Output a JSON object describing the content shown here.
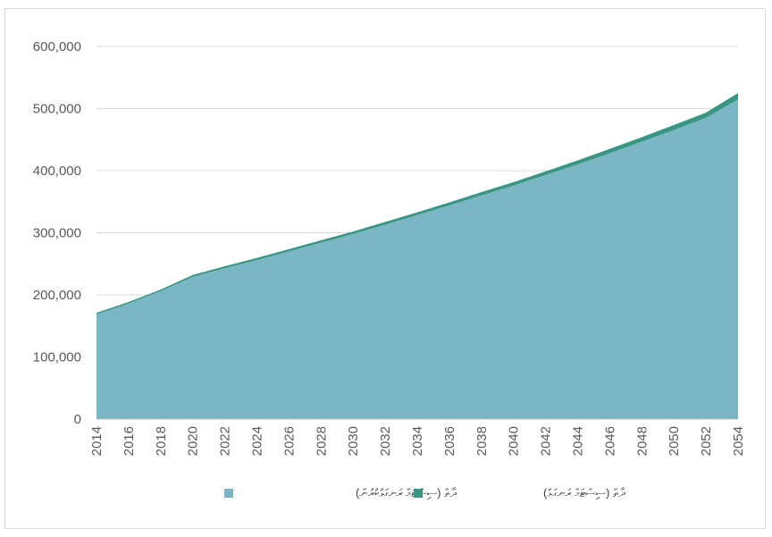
{
  "chart_data": {
    "type": "area",
    "stacked": true,
    "x": [
      2014,
      2016,
      2018,
      2020,
      2022,
      2024,
      2026,
      2028,
      2030,
      2032,
      2034,
      2036,
      2038,
      2040,
      2042,
      2044,
      2046,
      2048,
      2050,
      2052,
      2054
    ],
    "series": [
      {
        "name": "ދާތް (ސިސްޓަމް ރަނގަޅުކުރުން)",
        "color": "#7bb6c5",
        "values": [
          168500,
          186000,
          206000,
          229000,
          243000,
          256000,
          270000,
          284000,
          298000,
          313000,
          328500,
          344000,
          360000,
          376000,
          393000,
          410000,
          428000,
          446500,
          465500,
          485000,
          515000
        ]
      },
      {
        "name": "ދާތް (ސިސްޓަމް ރަނގަޅު)",
        "color": "#3a9582",
        "values": [
          2500,
          2500,
          2500,
          3000,
          3000,
          3500,
          3500,
          4000,
          4000,
          4500,
          4500,
          5000,
          5500,
          5500,
          6000,
          6500,
          7000,
          7500,
          8000,
          8500,
          10000
        ]
      }
    ],
    "ylim": [
      0,
      600000
    ],
    "yticks": [
      "0",
      "100,000",
      "200,000",
      "300,000",
      "400,000",
      "500,000",
      "600,000"
    ],
    "xticks": [
      "2014",
      "2016",
      "2018",
      "2020",
      "2022",
      "2024",
      "2026",
      "2028",
      "2030",
      "2032",
      "2034",
      "2036",
      "2038",
      "2040",
      "2042",
      "2044",
      "2046",
      "2048",
      "2050",
      "2052",
      "2054"
    ],
    "grid": true,
    "legend_position": "bottom",
    "title": "",
    "xlabel": "",
    "ylabel": ""
  }
}
